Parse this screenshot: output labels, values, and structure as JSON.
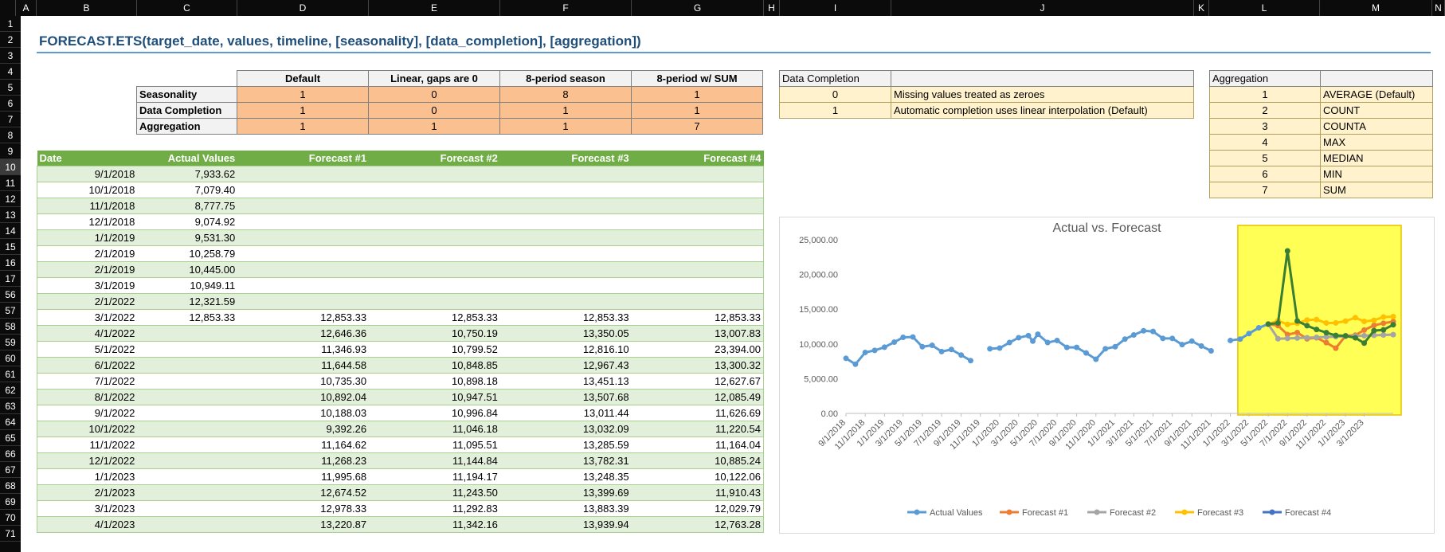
{
  "columns": [
    "A",
    "B",
    "C",
    "D",
    "E",
    "F",
    "G",
    "H",
    "I",
    "J",
    "K",
    "L",
    "M",
    "N"
  ],
  "rows": [
    "1",
    "2",
    "3",
    "4",
    "5",
    "6",
    "7",
    "8",
    "9",
    "10",
    "11",
    "12",
    "13",
    "14",
    "15",
    "16",
    "17",
    "56",
    "57",
    "58",
    "59",
    "60",
    "61",
    "62",
    "63",
    "64",
    "65",
    "66",
    "67",
    "68",
    "69",
    "70",
    "71"
  ],
  "title": "FORECAST.ETS(target_date, values, timeline, [seasonality], [data_completion], [aggregation])",
  "params": {
    "headers": [
      "Default",
      "Linear, gaps are 0",
      "8-period season",
      "8-period w/ SUM"
    ],
    "rows": [
      {
        "label": "Seasonality",
        "values": [
          "1",
          "0",
          "8",
          "1"
        ]
      },
      {
        "label": "Data Completion",
        "values": [
          "1",
          "0",
          "1",
          "1"
        ]
      },
      {
        "label": "Aggregation",
        "values": [
          "1",
          "1",
          "1",
          "7"
        ]
      }
    ]
  },
  "data_completion": {
    "header": "Data Completion",
    "rows": [
      {
        "code": "0",
        "text": "Missing values treated as zeroes"
      },
      {
        "code": "1",
        "text": "Automatic completion uses linear interpolation (Default)"
      }
    ]
  },
  "aggregation": {
    "header": "Aggregation",
    "rows": [
      {
        "code": "1",
        "text": "AVERAGE (Default)"
      },
      {
        "code": "2",
        "text": "COUNT"
      },
      {
        "code": "3",
        "text": "COUNTA"
      },
      {
        "code": "4",
        "text": "MAX"
      },
      {
        "code": "5",
        "text": "MEDIAN"
      },
      {
        "code": "6",
        "text": "MIN"
      },
      {
        "code": "7",
        "text": "SUM"
      }
    ]
  },
  "data_table": {
    "headers": [
      "Date",
      "Actual Values",
      "Forecast #1",
      "Forecast #2",
      "Forecast #3",
      "Forecast #4"
    ],
    "rows": [
      [
        "9/1/2018",
        "7,933.62",
        "",
        "",
        "",
        ""
      ],
      [
        "10/1/2018",
        "7,079.40",
        "",
        "",
        "",
        ""
      ],
      [
        "11/1/2018",
        "8,777.75",
        "",
        "",
        "",
        ""
      ],
      [
        "12/1/2018",
        "9,074.92",
        "",
        "",
        "",
        ""
      ],
      [
        "1/1/2019",
        "9,531.30",
        "",
        "",
        "",
        ""
      ],
      [
        "2/1/2019",
        "10,258.79",
        "",
        "",
        "",
        ""
      ],
      [
        "2/1/2019",
        "10,445.00",
        "",
        "",
        "",
        ""
      ],
      [
        "3/1/2019",
        "10,949.11",
        "",
        "",
        "",
        ""
      ],
      [
        "2/1/2022",
        "12,321.59",
        "",
        "",
        "",
        ""
      ],
      [
        "3/1/2022",
        "12,853.33",
        "12,853.33",
        "12,853.33",
        "12,853.33",
        "12,853.33"
      ],
      [
        "4/1/2022",
        "",
        "12,646.36",
        "10,750.19",
        "13,350.05",
        "13,007.83"
      ],
      [
        "5/1/2022",
        "",
        "11,346.93",
        "10,799.52",
        "12,816.10",
        "23,394.00"
      ],
      [
        "6/1/2022",
        "",
        "11,644.58",
        "10,848.85",
        "12,967.43",
        "13,300.32"
      ],
      [
        "7/1/2022",
        "",
        "10,735.30",
        "10,898.18",
        "13,451.13",
        "12,627.67"
      ],
      [
        "8/1/2022",
        "",
        "10,892.04",
        "10,947.51",
        "13,507.68",
        "12,085.49"
      ],
      [
        "9/1/2022",
        "",
        "10,188.03",
        "10,996.84",
        "13,011.44",
        "11,626.69"
      ],
      [
        "10/1/2022",
        "",
        "9,392.26",
        "11,046.18",
        "13,032.09",
        "11,220.54"
      ],
      [
        "11/1/2022",
        "",
        "11,164.62",
        "11,095.51",
        "13,285.59",
        "11,164.04"
      ],
      [
        "12/1/2022",
        "",
        "11,268.23",
        "11,144.84",
        "13,782.31",
        "10,885.24"
      ],
      [
        "1/1/2023",
        "",
        "11,995.68",
        "11,194.17",
        "13,248.35",
        "10,122.06"
      ],
      [
        "2/1/2023",
        "",
        "12,674.52",
        "11,243.50",
        "13,399.69",
        "11,910.43"
      ],
      [
        "3/1/2023",
        "",
        "12,978.33",
        "11,292.83",
        "13,883.39",
        "12,029.79"
      ],
      [
        "4/1/2023",
        "",
        "13,220.87",
        "11,342.16",
        "13,939.94",
        "12,763.28"
      ]
    ]
  },
  "chart_data": {
    "type": "line",
    "title": "Actual vs. Forecast",
    "ylim": [
      0,
      25000
    ],
    "yticks": [
      "0.00",
      "5,000.00",
      "10,000.00",
      "15,000.00",
      "20,000.00",
      "25,000.00"
    ],
    "xticks": [
      "9/1/2018",
      "11/1/2018",
      "1/1/2019",
      "3/1/2019",
      "5/1/2019",
      "7/1/2019",
      "9/1/2019",
      "11/1/2019",
      "1/1/2020",
      "3/1/2020",
      "5/1/2020",
      "7/1/2020",
      "9/1/2020",
      "11/1/2020",
      "1/1/2021",
      "3/1/2021",
      "5/1/2021",
      "7/1/2021",
      "9/1/2021",
      "11/1/2021",
      "1/1/2022",
      "3/1/2022",
      "5/1/2022",
      "7/1/2022",
      "9/1/2022",
      "11/1/2022",
      "1/1/2023",
      "3/1/2023"
    ],
    "highlight": {
      "from": "3/1/2022",
      "to": "4/1/2023",
      "color": "#ffff55"
    },
    "legend": "bottom",
    "series": [
      {
        "name": "Actual Values",
        "color": "#5b9bd5",
        "points": [
          [
            "9/1/2018",
            7934
          ],
          [
            "10/1/2018",
            7079
          ],
          [
            "11/1/2018",
            8778
          ],
          [
            "12/1/2018",
            9075
          ],
          [
            "1/1/2019",
            9531
          ],
          [
            "2/1/2019",
            10259
          ],
          [
            "3/1/2019",
            10949
          ],
          [
            "4/1/2019",
            11000
          ],
          [
            "5/1/2019",
            9600
          ],
          [
            "6/1/2019",
            9800
          ],
          [
            "7/1/2019",
            8900
          ],
          [
            "8/1/2019",
            9200
          ],
          [
            "9/1/2019",
            8400
          ],
          [
            "10/1/2019",
            7600
          ],
          [
            "11/1/2019",
            null
          ],
          [
            "12/1/2019",
            9300
          ],
          [
            "1/1/2020",
            9400
          ],
          [
            "2/1/2020",
            10200
          ],
          [
            "3/1/2020",
            10900
          ],
          [
            "4/1/2020",
            11200
          ],
          [
            "4/15/2020",
            10400
          ],
          [
            "5/1/2020",
            11400
          ],
          [
            "6/1/2020",
            10200
          ],
          [
            "7/1/2020",
            10500
          ],
          [
            "8/1/2020",
            9500
          ],
          [
            "9/1/2020",
            9500
          ],
          [
            "10/1/2020",
            8700
          ],
          [
            "11/1/2020",
            7800
          ],
          [
            "12/1/2020",
            9300
          ],
          [
            "1/1/2021",
            9600
          ],
          [
            "2/1/2021",
            10700
          ],
          [
            "3/1/2021",
            11300
          ],
          [
            "4/1/2021",
            11900
          ],
          [
            "5/1/2021",
            11800
          ],
          [
            "6/1/2021",
            10800
          ],
          [
            "7/1/2021",
            10800
          ],
          [
            "8/1/2021",
            9900
          ],
          [
            "9/1/2021",
            10400
          ],
          [
            "10/1/2021",
            9700
          ],
          [
            "11/1/2021",
            9000
          ],
          [
            "12/1/2021",
            null
          ],
          [
            "1/1/2022",
            10500
          ],
          [
            "2/1/2022",
            10700
          ],
          [
            "3/1/2022",
            11500
          ],
          [
            "4/1/2022",
            12322
          ],
          [
            "5/1/2022",
            12853
          ]
        ]
      },
      {
        "name": "Forecast #1",
        "color": "#ed7d31",
        "points": [
          [
            "5/1/2022",
            12853
          ],
          [
            "6/1/2022",
            12646
          ],
          [
            "7/1/2022",
            11347
          ],
          [
            "8/1/2022",
            11645
          ],
          [
            "9/1/2022",
            10735
          ],
          [
            "10/1/2022",
            10892
          ],
          [
            "11/1/2022",
            10188
          ],
          [
            "12/1/2022",
            9392
          ],
          [
            "1/1/2023",
            11165
          ],
          [
            "2/1/2023",
            11268
          ],
          [
            "3/1/2023",
            11996
          ],
          [
            "4/1/2023",
            12675
          ],
          [
            "5/1/2023",
            12978
          ],
          [
            "6/1/2023",
            13221
          ]
        ]
      },
      {
        "name": "Forecast #2",
        "color": "#a5a5a5",
        "points": [
          [
            "5/1/2022",
            12853
          ],
          [
            "6/1/2022",
            10750
          ],
          [
            "7/1/2022",
            10800
          ],
          [
            "8/1/2022",
            10849
          ],
          [
            "9/1/2022",
            10898
          ],
          [
            "10/1/2022",
            10948
          ],
          [
            "11/1/2022",
            10997
          ],
          [
            "12/1/2022",
            11046
          ],
          [
            "1/1/2023",
            11096
          ],
          [
            "2/1/2023",
            11145
          ],
          [
            "3/1/2023",
            11194
          ],
          [
            "4/1/2023",
            11244
          ],
          [
            "5/1/2023",
            11293
          ],
          [
            "6/1/2023",
            11342
          ]
        ]
      },
      {
        "name": "Forecast #3",
        "color": "#ffc000",
        "points": [
          [
            "5/1/2022",
            12853
          ],
          [
            "6/1/2022",
            13350
          ],
          [
            "7/1/2022",
            12816
          ],
          [
            "8/1/2022",
            12967
          ],
          [
            "9/1/2022",
            13451
          ],
          [
            "10/1/2022",
            13508
          ],
          [
            "11/1/2022",
            13011
          ],
          [
            "12/1/2022",
            13032
          ],
          [
            "1/1/2023",
            13286
          ],
          [
            "2/1/2023",
            13782
          ],
          [
            "3/1/2023",
            13248
          ],
          [
            "4/1/2023",
            13400
          ],
          [
            "5/1/2023",
            13883
          ],
          [
            "6/1/2023",
            13940
          ]
        ]
      },
      {
        "name": "Forecast #4",
        "color": "#4472c4",
        "line_color": "#3a7d34",
        "points": [
          [
            "5/1/2022",
            12853
          ],
          [
            "6/1/2022",
            13008
          ],
          [
            "7/1/2022",
            23394
          ],
          [
            "8/1/2022",
            13300
          ],
          [
            "9/1/2022",
            12628
          ],
          [
            "10/1/2022",
            12085
          ],
          [
            "11/1/2022",
            11627
          ],
          [
            "12/1/2022",
            11221
          ],
          [
            "1/1/2023",
            11164
          ],
          [
            "2/1/2023",
            10885
          ],
          [
            "3/1/2023",
            10122
          ],
          [
            "4/1/2023",
            11910
          ],
          [
            "5/1/2023",
            12030
          ],
          [
            "6/1/2023",
            12763
          ]
        ]
      }
    ]
  }
}
